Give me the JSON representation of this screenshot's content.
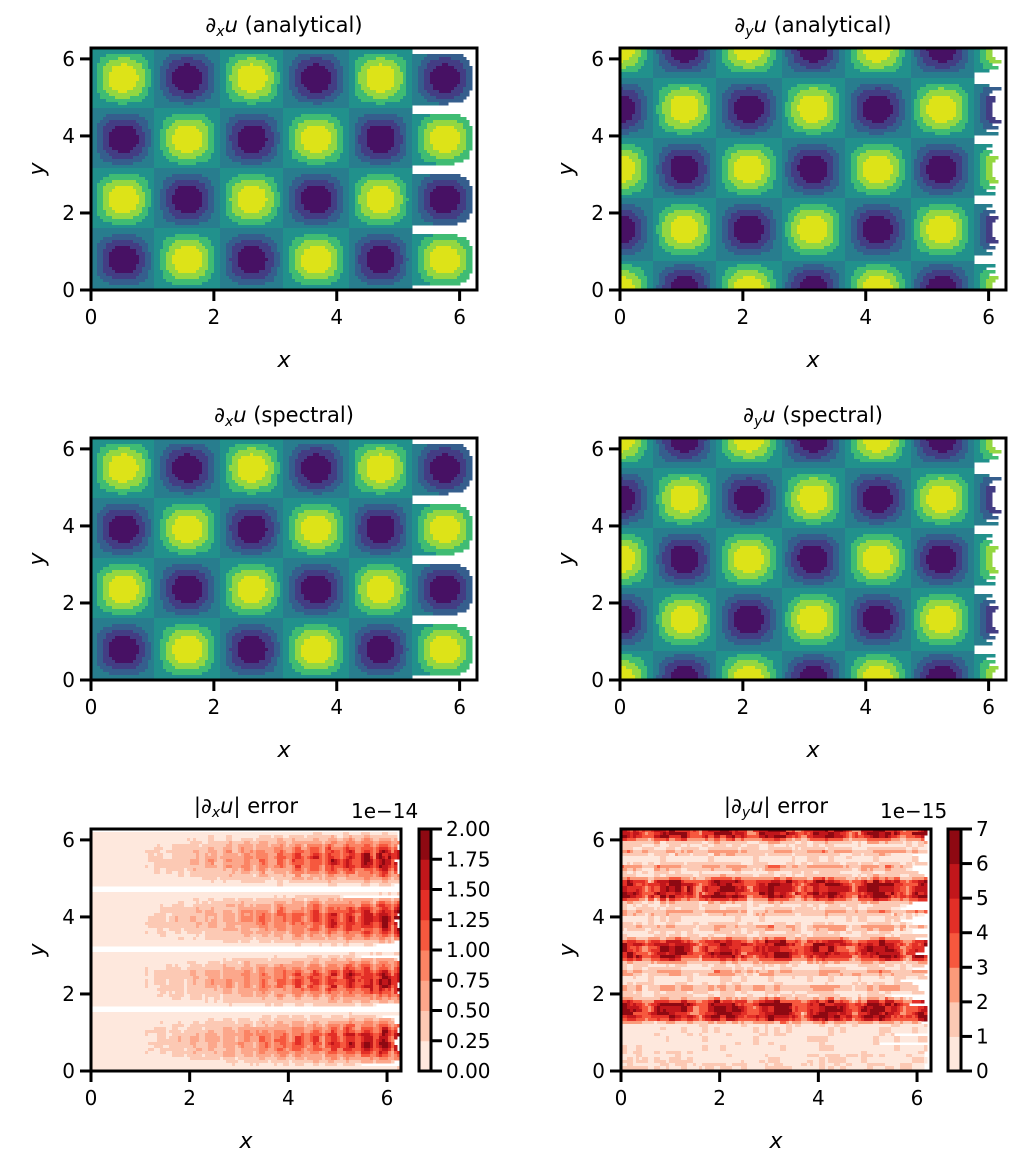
{
  "chart_data": [
    {
      "type": "heatmap",
      "style": "filled-contour",
      "title": {
        "pre": "∂",
        "sub": "x",
        "var": "u",
        "post": " (analytical)"
      },
      "xlabel": "x",
      "ylabel": "y",
      "xlim": [
        0,
        6.283
      ],
      "ylim": [
        0,
        6.283
      ],
      "xticks": [
        "0",
        "2",
        "4",
        "6"
      ],
      "yticks": [
        "0",
        "2",
        "4",
        "6"
      ],
      "colormap": "viridis",
      "colors": [
        "#471164",
        "#433d84",
        "#355e8d",
        "#287d8e",
        "#21918c",
        "#3fbc73",
        "#93d741",
        "#dde318"
      ],
      "field": {
        "amplitude": -3,
        "x_func": "sin",
        "kx": 3,
        "y_func": "sin",
        "ky": 2
      },
      "zlim": [
        -3,
        3
      ]
    },
    {
      "type": "heatmap",
      "style": "filled-contour",
      "title": {
        "pre": "∂",
        "sub": "y",
        "var": "u",
        "post": " (analytical)"
      },
      "xlabel": "x",
      "ylabel": "y",
      "xlim": [
        0,
        6.283
      ],
      "ylim": [
        0,
        6.283
      ],
      "xticks": [
        "0",
        "2",
        "4",
        "6"
      ],
      "yticks": [
        "0",
        "2",
        "4",
        "6"
      ],
      "colormap": "viridis",
      "colors": [
        "#471164",
        "#433d84",
        "#355e8d",
        "#287d8e",
        "#21918c",
        "#3fbc73",
        "#93d741",
        "#dde318"
      ],
      "field": {
        "amplitude": 2,
        "x_func": "cos",
        "kx": 3,
        "y_func": "cos",
        "ky": 2
      },
      "zlim": [
        -2,
        2
      ]
    },
    {
      "type": "heatmap",
      "style": "filled-contour",
      "title": {
        "pre": "∂",
        "sub": "x",
        "var": "u",
        "post": " (spectral)"
      },
      "xlabel": "x",
      "ylabel": "y",
      "xlim": [
        0,
        6.283
      ],
      "ylim": [
        0,
        6.283
      ],
      "xticks": [
        "0",
        "2",
        "4",
        "6"
      ],
      "yticks": [
        "0",
        "2",
        "4",
        "6"
      ],
      "colormap": "viridis",
      "colors": [
        "#471164",
        "#433d84",
        "#355e8d",
        "#287d8e",
        "#21918c",
        "#3fbc73",
        "#93d741",
        "#dde318"
      ],
      "field": {
        "amplitude": -3,
        "x_func": "sin",
        "kx": 3,
        "y_func": "sin",
        "ky": 2
      },
      "zlim": [
        -3,
        3
      ]
    },
    {
      "type": "heatmap",
      "style": "filled-contour",
      "title": {
        "pre": "∂",
        "sub": "y",
        "var": "u",
        "post": " (spectral)"
      },
      "xlabel": "x",
      "ylabel": "y",
      "xlim": [
        0,
        6.283
      ],
      "ylim": [
        0,
        6.283
      ],
      "xticks": [
        "0",
        "2",
        "4",
        "6"
      ],
      "yticks": [
        "0",
        "2",
        "4",
        "6"
      ],
      "colormap": "viridis",
      "colors": [
        "#471164",
        "#433d84",
        "#355e8d",
        "#287d8e",
        "#21918c",
        "#3fbc73",
        "#93d741",
        "#dde318"
      ],
      "field": {
        "amplitude": 2,
        "x_func": "cos",
        "kx": 3,
        "y_func": "cos",
        "ky": 2
      },
      "zlim": [
        -2,
        2
      ]
    },
    {
      "type": "heatmap",
      "style": "filled-contour",
      "title": {
        "pre": "|∂",
        "sub": "x",
        "var": "u",
        "post": "| error"
      },
      "xlabel": "x",
      "ylabel": "y",
      "xlim": [
        0,
        6.283
      ],
      "ylim": [
        0,
        6.283
      ],
      "xticks": [
        "0",
        "2",
        "4",
        "6"
      ],
      "yticks": [
        "0",
        "2",
        "4",
        "6"
      ],
      "colormap": "Reds",
      "colors": [
        "#fee8dd",
        "#fcc9b4",
        "#fca78b",
        "#fb8464",
        "#f6583e",
        "#e32f27",
        "#c1161b",
        "#8e0912"
      ],
      "zlim": [
        0,
        2.0
      ],
      "colorbar": {
        "offset": "1e−14",
        "ticks": [
          "0.00",
          "0.25",
          "0.50",
          "0.75",
          "1.00",
          "1.25",
          "1.50",
          "1.75",
          "2.00"
        ],
        "min": 0,
        "max": 2.0
      }
    },
    {
      "type": "heatmap",
      "style": "filled-contour",
      "title": {
        "pre": "|∂",
        "sub": "y",
        "var": "u",
        "post": "| error"
      },
      "xlabel": "x",
      "ylabel": "y",
      "xlim": [
        0,
        6.283
      ],
      "ylim": [
        0,
        6.283
      ],
      "xticks": [
        "0",
        "2",
        "4",
        "6"
      ],
      "yticks": [
        "0",
        "2",
        "4",
        "6"
      ],
      "colormap": "Reds",
      "colors": [
        "#fee8dd",
        "#fcc9b4",
        "#fb9a7a",
        "#f6583e",
        "#e32f27",
        "#c1161b",
        "#8e0912"
      ],
      "zlim": [
        0,
        7
      ],
      "colorbar": {
        "offset": "1e−15",
        "ticks": [
          "0",
          "1",
          "2",
          "3",
          "4",
          "5",
          "6",
          "7"
        ],
        "min": 0,
        "max": 7
      }
    }
  ]
}
